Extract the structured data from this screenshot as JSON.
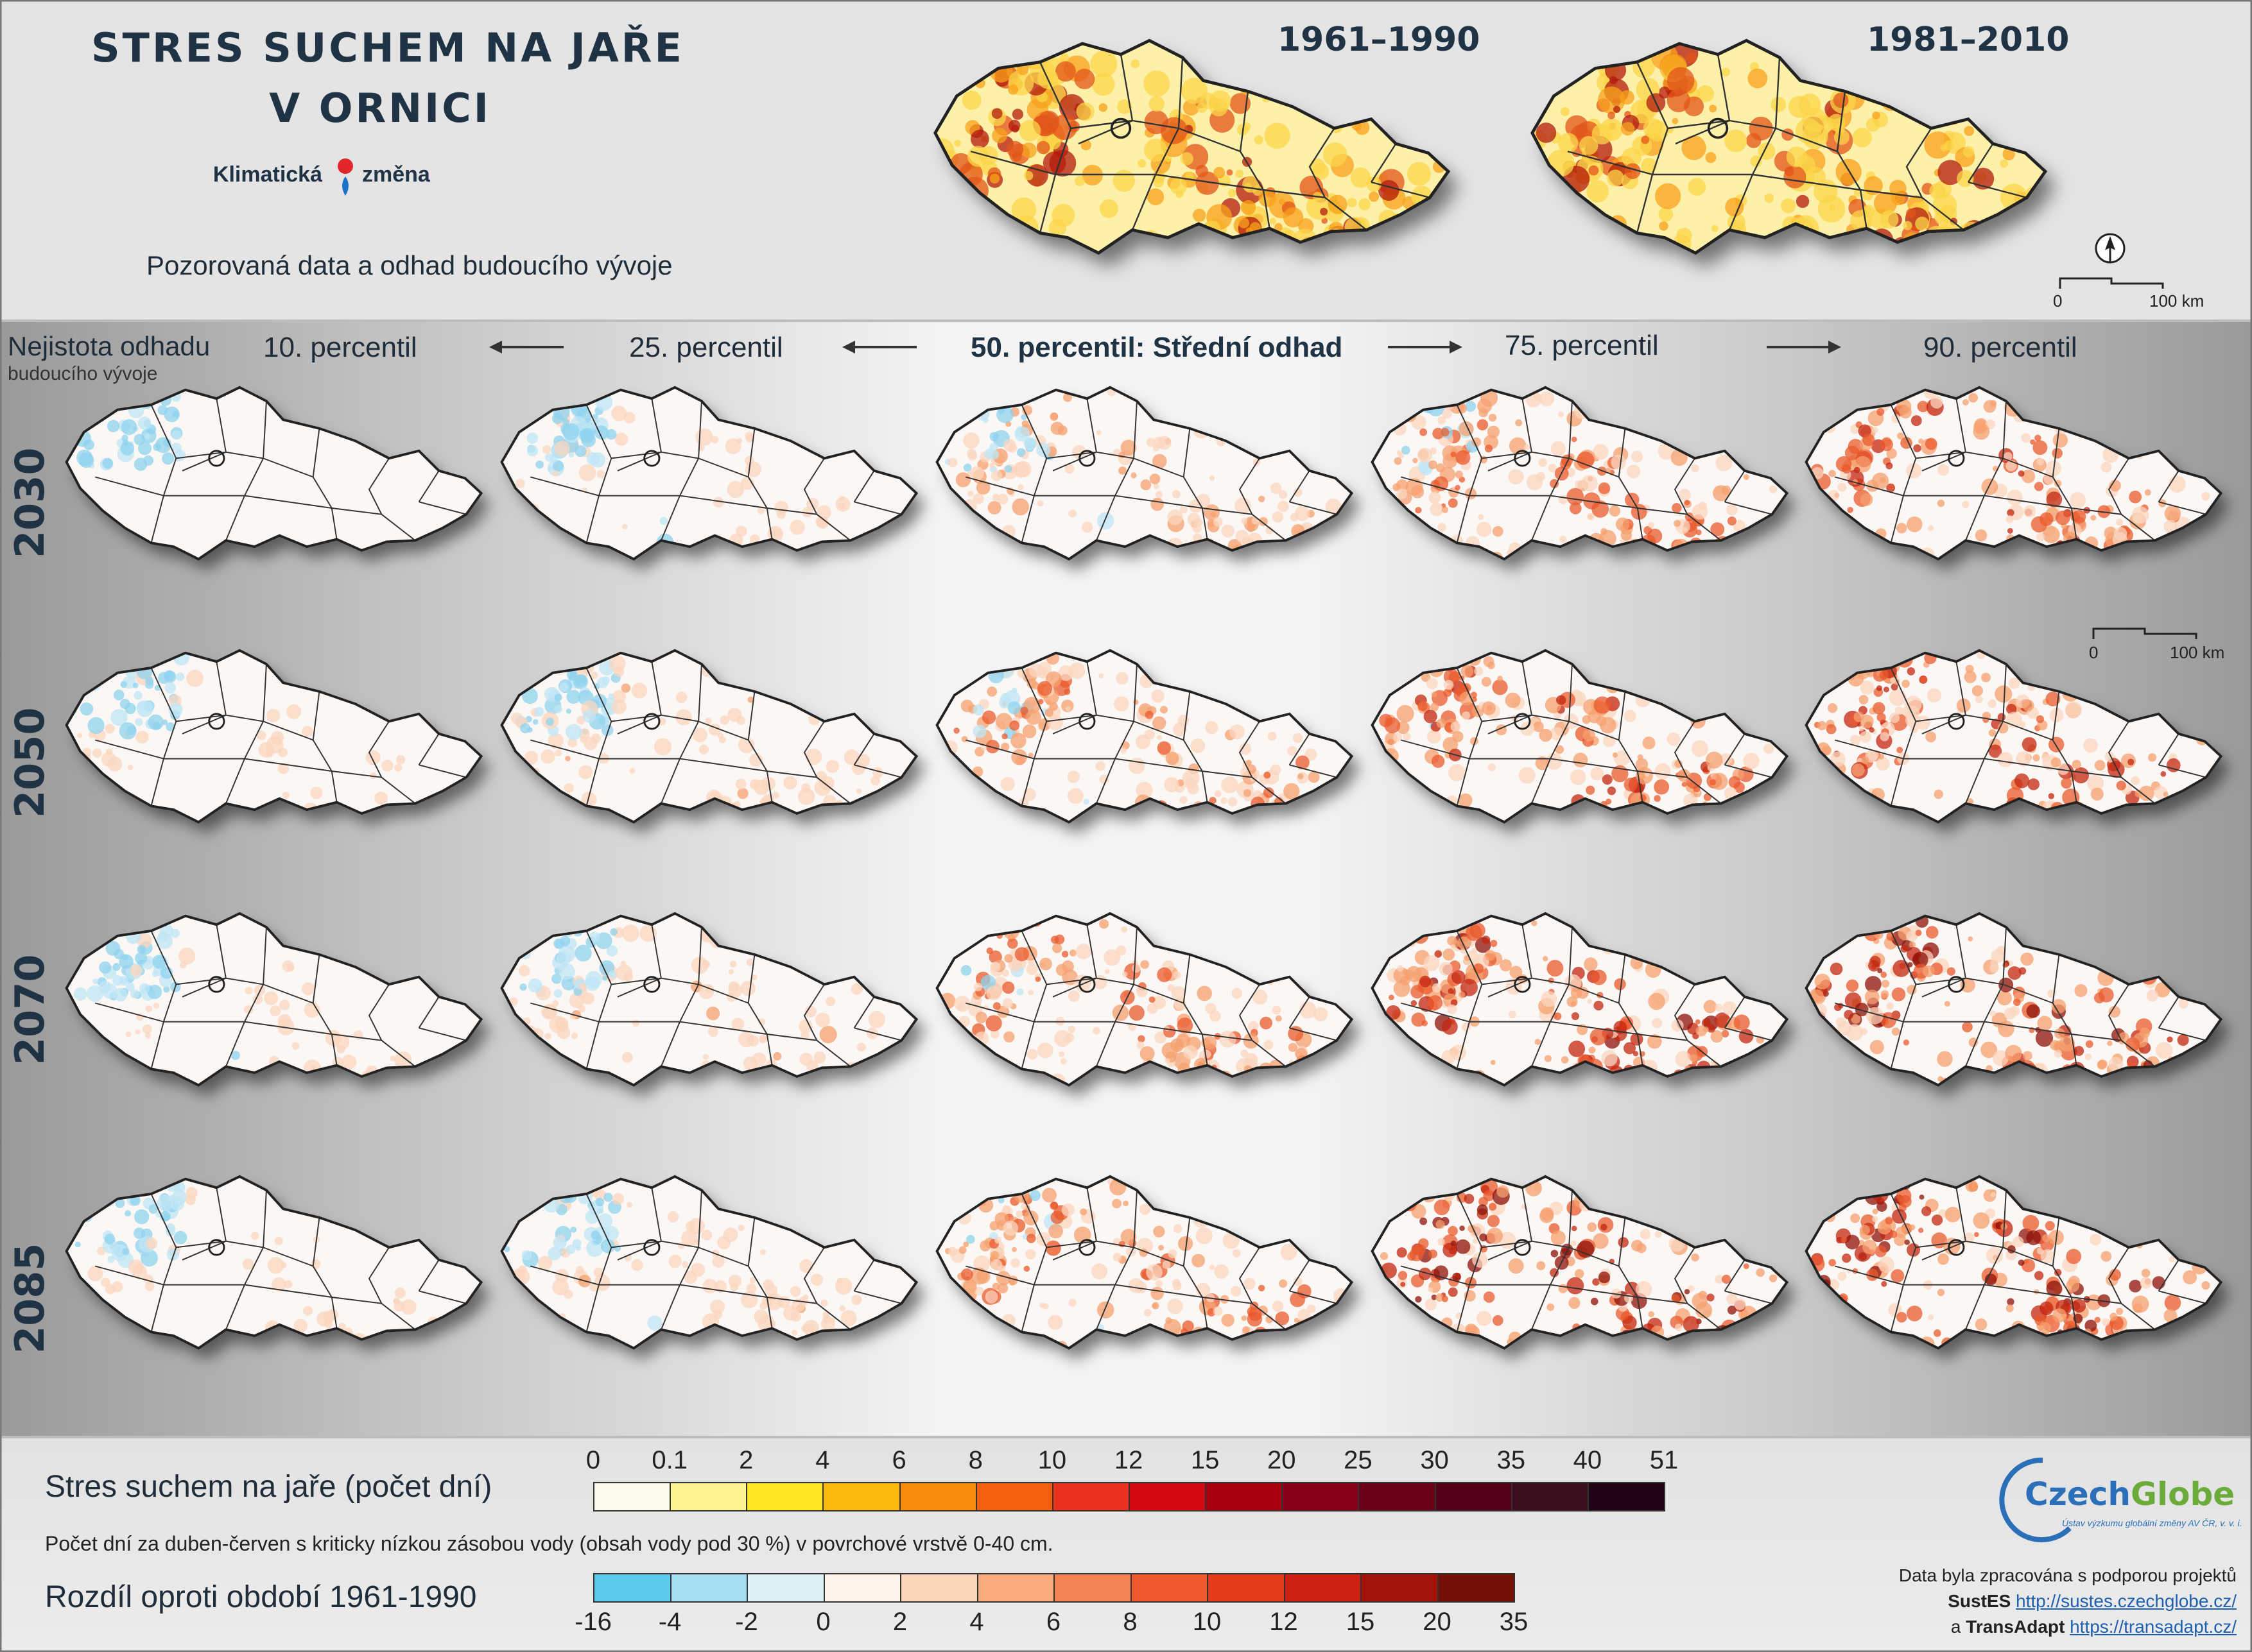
{
  "title_line1": "STRES SUCHEM NA JAŘE",
  "title_line2": "V ORNICI",
  "brand_left": "Klimatická",
  "brand_right": "změna",
  "subtitle": "Pozorovaná data a odhad budoucího vývoje",
  "observed_periods": [
    "1961–1990",
    "1981–2010"
  ],
  "uncertainty_label_1": "Nejistota odhadu",
  "uncertainty_label_2": "budoucího vývoje",
  "percentiles": [
    "10. percentil",
    "25. percentil",
    "50. percentil: Střední odhad",
    "75. percentil",
    "90. percentil"
  ],
  "years": [
    "2030",
    "2050",
    "2070",
    "2085"
  ],
  "scale_bar": {
    "start": "0",
    "end": "100 km"
  },
  "legend_abs": {
    "label": "Stres suchem na jaře (počet dní)",
    "ticks": [
      "0",
      "0.1",
      "2",
      "4",
      "6",
      "8",
      "10",
      "12",
      "15",
      "20",
      "25",
      "30",
      "35",
      "40",
      "51"
    ],
    "colors": [
      "#fffbea",
      "#fdf590",
      "#fde725",
      "#fbb90e",
      "#f78c0b",
      "#f26010",
      "#e8321d",
      "#d40a13",
      "#a8000e",
      "#880017",
      "#6b0019",
      "#550016",
      "#3d0e20",
      "#200314"
    ]
  },
  "description": "Počet dní za duben-červen s kriticky nízkou zásobou vody (obsah vody pod 30 %) v povrchové vrstvě 0-40 cm.",
  "legend_diff": {
    "label": "Rozdíl oproti období 1961-1990",
    "ticks": [
      "-16",
      "-4",
      "-2",
      "0",
      "2",
      "4",
      "6",
      "8",
      "10",
      "12",
      "15",
      "20",
      "35"
    ],
    "colors": [
      "#5bcbee",
      "#a8def3",
      "#dcf1f8",
      "#fdf3ea",
      "#fcd4b8",
      "#f8ab7d",
      "#f58455",
      "#f05a2e",
      "#e63a1c",
      "#cd2211",
      "#a4130c",
      "#751007"
    ]
  },
  "logo": {
    "text_czech": "Czech",
    "text_globe": "Globe",
    "subtitle": "Ústav výzkumu globální změny AV ČR, v. v. i."
  },
  "credits": {
    "line1": "Data byla zpracována s podporou projektů",
    "proj1": "SustES",
    "url1": "http://sustes.czechglobe.cz/",
    "and": "a",
    "proj2": "TransAdapt",
    "url2": "https://transadapt.cz/"
  },
  "map_intensity": [
    [
      0.05,
      0.15,
      0.35,
      0.55,
      0.75
    ],
    [
      0.1,
      0.2,
      0.45,
      0.7,
      0.85
    ],
    [
      0.1,
      0.2,
      0.55,
      0.9,
      1.05
    ],
    [
      0.1,
      0.2,
      0.6,
      1.05,
      1.25
    ]
  ],
  "map_blue": [
    [
      0.8,
      0.7,
      0.35,
      0.1,
      0.0
    ],
    [
      0.75,
      0.65,
      0.2,
      0.05,
      0.0
    ],
    [
      0.8,
      0.7,
      0.1,
      0.0,
      0.0
    ],
    [
      0.85,
      0.75,
      0.1,
      0.0,
      0.0
    ]
  ]
}
